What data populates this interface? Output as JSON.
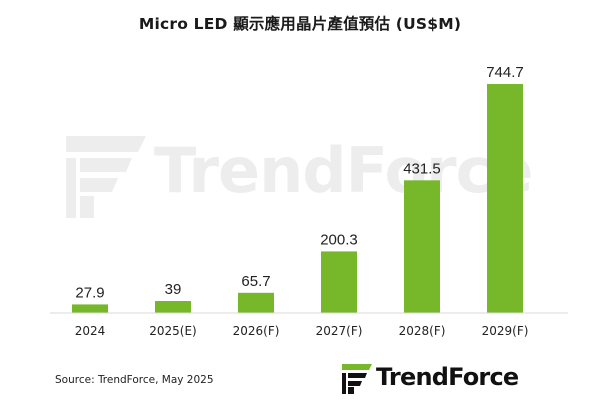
{
  "title": "Micro LED 顯示應用晶片產值預估 (US$M)",
  "watermark_text": "TrendForce",
  "source": "Source: TrendForce, May 2025",
  "logo_text": "TrendForce",
  "colors": {
    "bar": "#76b82a",
    "axis": "#d9d9d9",
    "logo_green": "#76b82a"
  },
  "chart_data": {
    "type": "bar",
    "title": "Micro LED 顯示應用晶片產值預估 (US$M)",
    "categories": [
      "2024",
      "2025(E)",
      "2026(F)",
      "2027(F)",
      "2028(F)",
      "2029(F)"
    ],
    "values": [
      27.9,
      39,
      65.7,
      200.3,
      431.5,
      744.7
    ],
    "value_labels": [
      "27.9",
      "39",
      "65.7",
      "200.3",
      "431.5",
      "744.7"
    ],
    "xlabel": "",
    "ylabel": "",
    "ylim": [
      0,
      800
    ],
    "grid": false,
    "legend": "none"
  }
}
